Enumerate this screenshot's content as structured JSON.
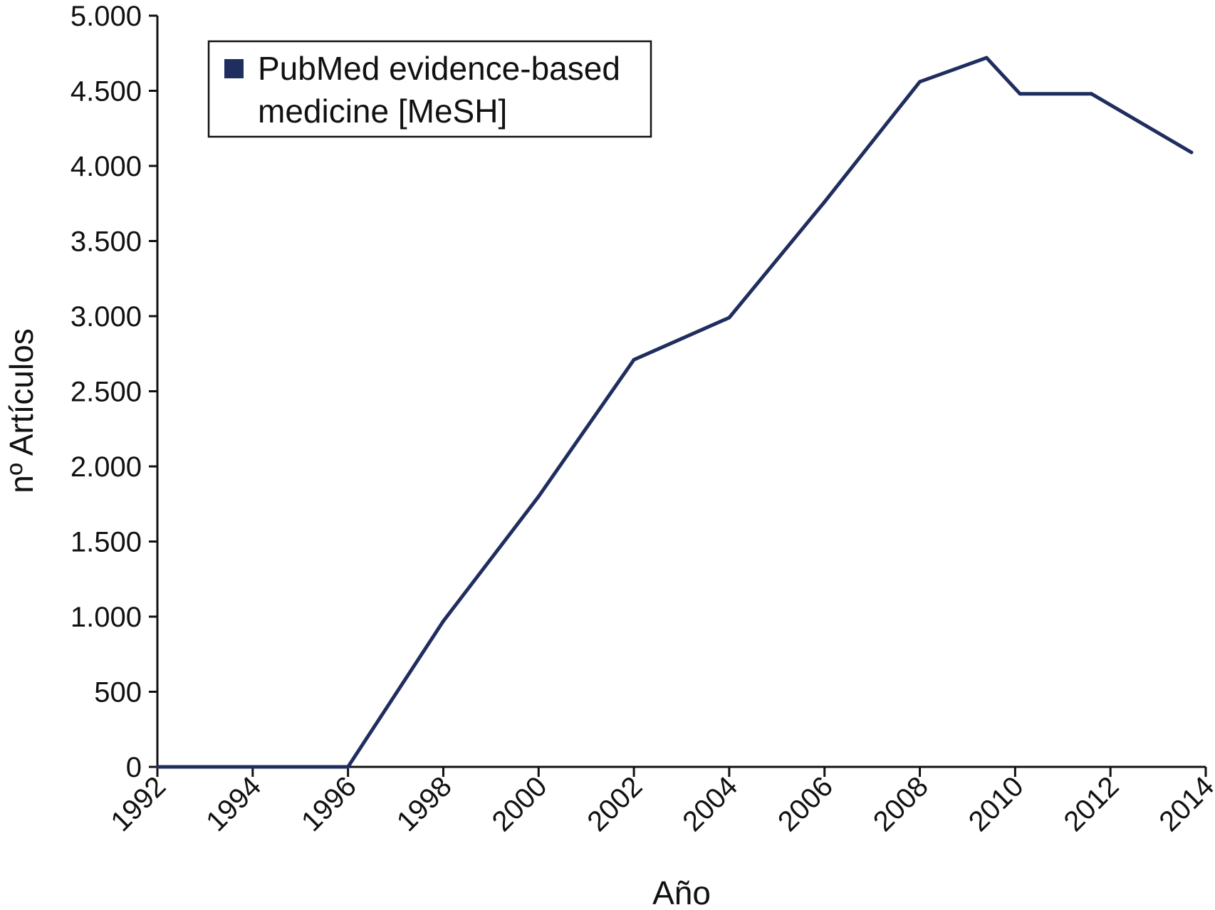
{
  "chart_data": {
    "type": "line",
    "title": "",
    "xlabel": "Año",
    "ylabel": "nº Artículos",
    "xlim": [
      1992,
      2014
    ],
    "ylim": [
      0,
      5000
    ],
    "x_ticks": [
      1992,
      1994,
      1996,
      1998,
      2000,
      2002,
      2004,
      2006,
      2008,
      2010,
      2012,
      2014
    ],
    "x_tick_labels": [
      "1992",
      "1994",
      "1996",
      "1998",
      "2000",
      "2002",
      "2004",
      "2006",
      "2008",
      "2010",
      "2012",
      "2014"
    ],
    "y_ticks": [
      0,
      500,
      1000,
      1500,
      2000,
      2500,
      3000,
      3500,
      4000,
      4500,
      5000
    ],
    "y_tick_labels": [
      "0",
      "500",
      "1.000",
      "1.500",
      "2.000",
      "2.500",
      "3.000",
      "3.500",
      "4.000",
      "4.500",
      "5.000"
    ],
    "grid": false,
    "legend_position": "top-left",
    "series": [
      {
        "name": "PubMed evidence-based medicine [MeSH]",
        "legend_lines": [
          "PubMed evidence-based",
          "medicine [MeSH]"
        ],
        "color": "#1f2d5f",
        "x": [
          1992,
          1994,
          1996,
          1998,
          2000,
          2002,
          2004,
          2006,
          2008,
          2009.4,
          2010.1,
          2011.6,
          2013.7
        ],
        "values": [
          0,
          0,
          0,
          970,
          1800,
          2710,
          2990,
          3760,
          4560,
          4720,
          4480,
          4480,
          4090
        ]
      }
    ]
  }
}
